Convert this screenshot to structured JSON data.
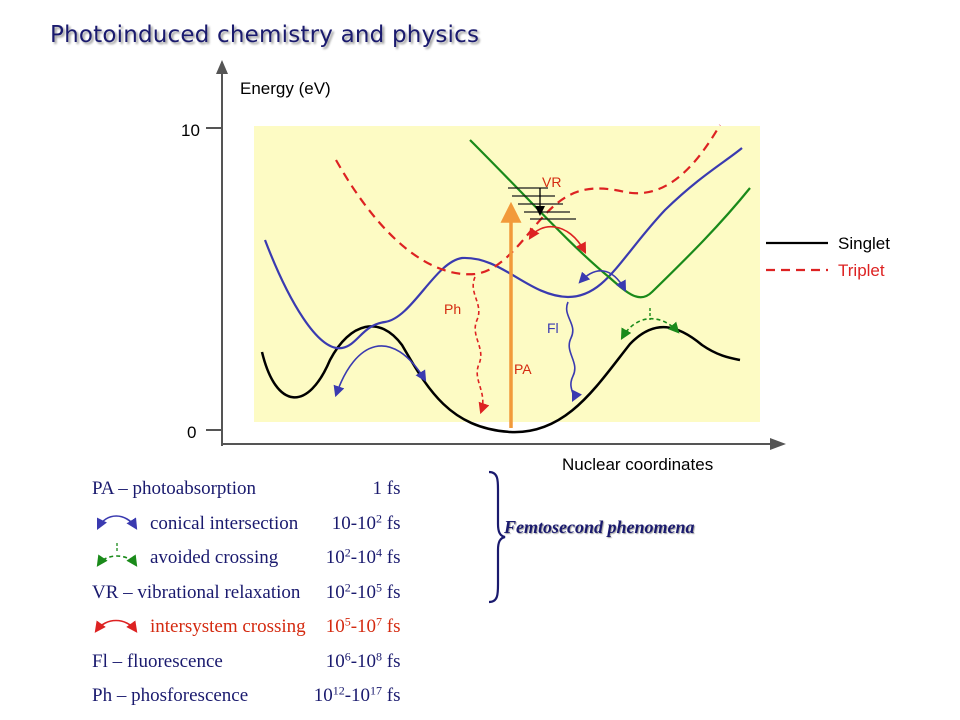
{
  "title": "Photoinduced chemistry and physics",
  "axes": {
    "y_label": "Energy (eV)",
    "x_label": "Nuclear coordinates",
    "y_ticks": [
      "10",
      "0"
    ]
  },
  "legend": {
    "singlet": "Singlet",
    "triplet": "Triplet"
  },
  "process_labels": {
    "vr": "VR",
    "ph": "Ph",
    "fl": "Fl",
    "pa": "PA"
  },
  "colors": {
    "background_panel": "#fdfbc4",
    "ground_singlet": "#000000",
    "excited_singlet": "#3a3ab0",
    "upper_singlet": "#1a8a1a",
    "triplet": "#dd2222",
    "absorption_arrow": "#f29a3a",
    "text_navy": "#1a1a6e",
    "text_red": "#d42a10"
  },
  "phenomena": {
    "pa": {
      "name": "PA – photoabsorption",
      "time": "1 fs"
    },
    "ci": {
      "name": "conical intersection",
      "time_base": "10-10",
      "time_exp": "2",
      "unit": "fs",
      "icon": "blue-double-arrow-icon"
    },
    "ac": {
      "name": "avoided crossing",
      "time_base": "10",
      "time_exp1": "2",
      "time_mid": "-10",
      "time_exp2": "4",
      "unit": "fs",
      "icon": "green-avoided-crossing-icon"
    },
    "vr": {
      "name": "VR – vibrational relaxation",
      "time_base": "10",
      "time_exp1": "2",
      "time_mid": "-10",
      "time_exp2": "5",
      "unit": "fs"
    },
    "isc": {
      "name": "intersystem crossing",
      "time_base": "10",
      "time_exp1": "5",
      "time_mid": "-10",
      "time_exp2": "7",
      "unit": "fs",
      "icon": "red-double-arrow-icon"
    },
    "fl": {
      "name": "Fl  – fluorescence",
      "time_base": "10",
      "time_exp1": "6",
      "time_mid": "-10",
      "time_exp2": "8",
      "unit": "fs"
    },
    "ph": {
      "name": "Ph – phosforescence",
      "time_base": "10",
      "time_exp1": "12",
      "time_mid": "-10",
      "time_exp2": "17",
      "unit": "fs"
    }
  },
  "group_label": "Femtosecond phenomena"
}
